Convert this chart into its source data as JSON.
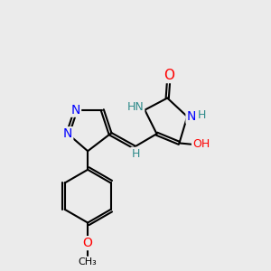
{
  "background_color": "#ebebeb",
  "atom_colors": {
    "N": "#0000ff",
    "O": "#ff0000",
    "C": "#000000",
    "H_label": "#2e8b8b"
  },
  "bond_color": "#000000",
  "bond_width": 1.5,
  "figsize": [
    3.0,
    3.0
  ],
  "dpi": 100,
  "xlim": [
    0,
    10
  ],
  "ylim": [
    0,
    10
  ]
}
